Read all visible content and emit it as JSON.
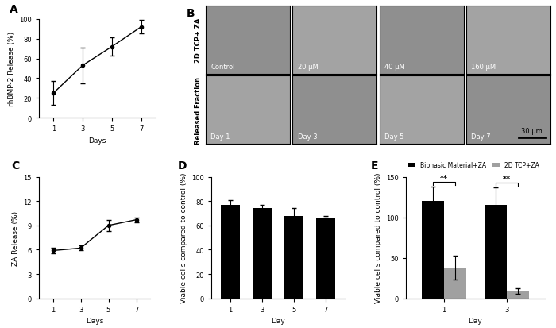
{
  "chart_data": [
    {
      "type": "line",
      "title": "A",
      "x": [
        1,
        3,
        5,
        7
      ],
      "values": [
        25,
        53,
        72,
        92
      ],
      "errors": [
        12,
        18,
        9,
        7
      ],
      "color": "#000000",
      "marker": "o",
      "x_label": "Days",
      "y_label": "rhBMP-2 Release (%)",
      "xlim": [
        0,
        8
      ],
      "xticks": [
        1,
        3,
        5,
        7
      ],
      "ylim": [
        0,
        100
      ],
      "yticks": [
        0,
        20,
        40,
        60,
        80,
        100
      ]
    },
    {
      "type": "line",
      "title": "C",
      "x": [
        1,
        3,
        5,
        7
      ],
      "values": [
        5.9,
        6.2,
        9.0,
        9.7
      ],
      "errors": [
        0.3,
        0.3,
        0.7,
        0.3
      ],
      "color": "#000000",
      "marker": "o",
      "x_label": "Days",
      "y_label": "ZA Release (%)",
      "xlim": [
        0,
        8
      ],
      "xticks": [
        1,
        3,
        5,
        7
      ],
      "ylim": [
        0,
        15
      ],
      "yticks": [
        0,
        3,
        6,
        9,
        12,
        15
      ]
    },
    {
      "type": "bar",
      "title": "D",
      "categories": [
        "1",
        "3",
        "5",
        "7"
      ],
      "values": [
        77,
        74,
        68,
        66
      ],
      "errors": [
        4,
        3,
        6,
        2
      ],
      "color": "#000000",
      "x_label": "Day",
      "y_label": "Viable cells compared to control (%)",
      "ylim": [
        0,
        100
      ],
      "yticks": [
        0,
        20,
        40,
        60,
        80,
        100
      ]
    },
    {
      "type": "bar",
      "title": "E",
      "categories": [
        "1",
        "3"
      ],
      "series": [
        {
          "name": "Biphasic Material+ZA",
          "color": "#000000",
          "values": [
            120,
            115
          ],
          "errors": [
            18,
            22
          ]
        },
        {
          "name": "2D TCP+ZA",
          "color": "#a0a0a0",
          "values": [
            38,
            9
          ],
          "errors": [
            15,
            3
          ]
        }
      ],
      "annotations": [
        "**",
        "**"
      ],
      "legend": "upper right",
      "x_label": "Day",
      "y_label": "Viable cells compared to control (%)",
      "ylim": [
        0,
        150
      ],
      "yticks": [
        0,
        50,
        100,
        150
      ]
    }
  ],
  "image_panel": {
    "title": "B",
    "rows": [
      {
        "label": "2D TCP+ ZA",
        "images": [
          "Control",
          "20 µM",
          "40 µM",
          "160 µM"
        ]
      },
      {
        "label": "Released Fraction",
        "images": [
          "Day 1",
          "Day 3",
          "Day 5",
          "Day 7"
        ]
      }
    ],
    "scale_bar": "30 µm"
  }
}
